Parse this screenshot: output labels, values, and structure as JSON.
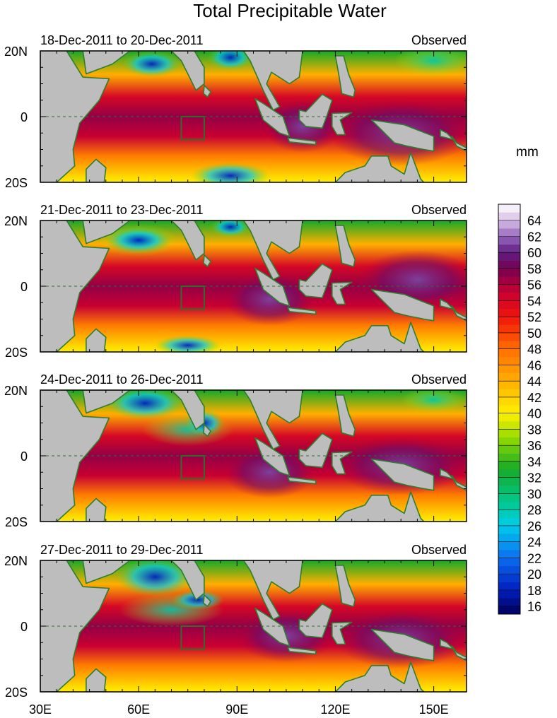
{
  "chart_data": {
    "type": "heatmap",
    "title": "Total Precipitable Water",
    "units_label": "mm",
    "x_axis": {
      "range": [
        30,
        160
      ],
      "ticks": [
        30,
        60,
        90,
        120,
        150
      ],
      "tick_labels": [
        "30E",
        "60E",
        "90E",
        "120E",
        "150E"
      ]
    },
    "y_axis": {
      "range": [
        -20,
        20
      ],
      "ticks": [
        20,
        0,
        -20
      ],
      "tick_labels": [
        "20N",
        "0",
        "20S"
      ]
    },
    "colorbar": {
      "min": 15,
      "max": 66,
      "levels": [
        16,
        18,
        20,
        22,
        24,
        26,
        28,
        30,
        32,
        34,
        36,
        38,
        40,
        42,
        44,
        46,
        48,
        50,
        52,
        54,
        56,
        58,
        60,
        62,
        64
      ],
      "labels": [
        "16",
        "18",
        "20",
        "22",
        "24",
        "26",
        "28",
        "30",
        "32",
        "34",
        "36",
        "38",
        "40",
        "42",
        "44",
        "46",
        "48",
        "50",
        "52",
        "54",
        "56",
        "58",
        "60",
        "62",
        "64"
      ]
    },
    "analysis_box": {
      "lon": [
        73,
        80
      ],
      "lat": [
        -7,
        0
      ]
    },
    "panels": [
      {
        "period": "18-Dec-2011 to 20-Dec-2011",
        "source": "Observed"
      },
      {
        "period": "21-Dec-2011 to 23-Dec-2011",
        "source": "Observed"
      },
      {
        "period": "24-Dec-2011 to 26-Dec-2011",
        "source": "Observed"
      },
      {
        "period": "27-Dec-2011 to 29-Dec-2011",
        "source": "Observed"
      }
    ]
  },
  "colors": {
    "land": "#bdbdbd",
    "coast": "#2f7d2f",
    "equator": "#2f6f2f",
    "box": "#2d6e2d"
  }
}
